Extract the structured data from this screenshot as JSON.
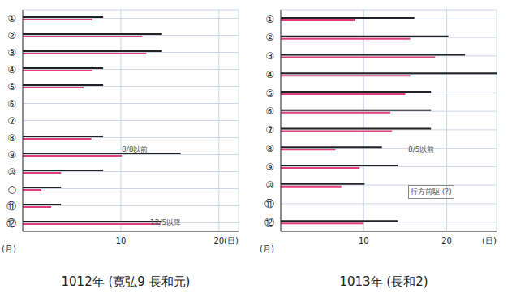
{
  "chart_data": [
    {
      "type": "bar",
      "orientation": "horizontal",
      "grid": true,
      "title": "1012年 (寛弘9 長和元)",
      "x_label": "(日)",
      "y_label": "(月)",
      "annotations": [
        "8/8以前",
        "12/5以降"
      ],
      "categories": [
        "①",
        "②",
        "③",
        "④",
        "⑤",
        "⑥",
        "⑦",
        "⑧",
        "⑨",
        "⑩",
        "○",
        "⑪",
        "⑫"
      ],
      "xlim": [
        0,
        22
      ],
      "xticks": [
        10,
        20
      ],
      "series": [
        {
          "color": "#222222",
          "values": [
            8.2,
            14.2,
            14.2,
            8.2,
            8.2,
            null,
            null,
            8.2,
            16.1,
            8.2,
            3.9,
            3.9,
            14.2
          ]
        },
        {
          "color": "#e0407a",
          "values": [
            7.1,
            12.2,
            12.6,
            7.1,
            6.2,
            null,
            null,
            7.0,
            10.1,
            3.9,
            1.9,
            2.9,
            14.0
          ]
        }
      ]
    },
    {
      "type": "bar",
      "orientation": "horizontal",
      "grid": true,
      "title": "1013年 (長和2)",
      "x_label": "(日)",
      "y_label": "(月)",
      "annotations": [
        "8/5以前",
        "行方前駆 (?)"
      ],
      "categories": [
        "①",
        "②",
        "③",
        "④",
        "⑤",
        "⑥",
        "⑦",
        "⑧",
        "⑨",
        "⑩",
        "⑪",
        "⑫"
      ],
      "xlim": [
        0,
        26
      ],
      "xticks": [
        10,
        20
      ],
      "series": [
        {
          "color": "#222222",
          "values": [
            16.1,
            20.2,
            22.2,
            26.0,
            18.1,
            18.1,
            18.1,
            12.2,
            14.1,
            10.1,
            null,
            14.1
          ]
        },
        {
          "color": "#e0407a",
          "values": [
            9.0,
            15.6,
            18.6,
            15.6,
            15.0,
            13.2,
            13.4,
            6.6,
            9.5,
            7.3,
            null,
            10.0
          ]
        }
      ]
    }
  ]
}
